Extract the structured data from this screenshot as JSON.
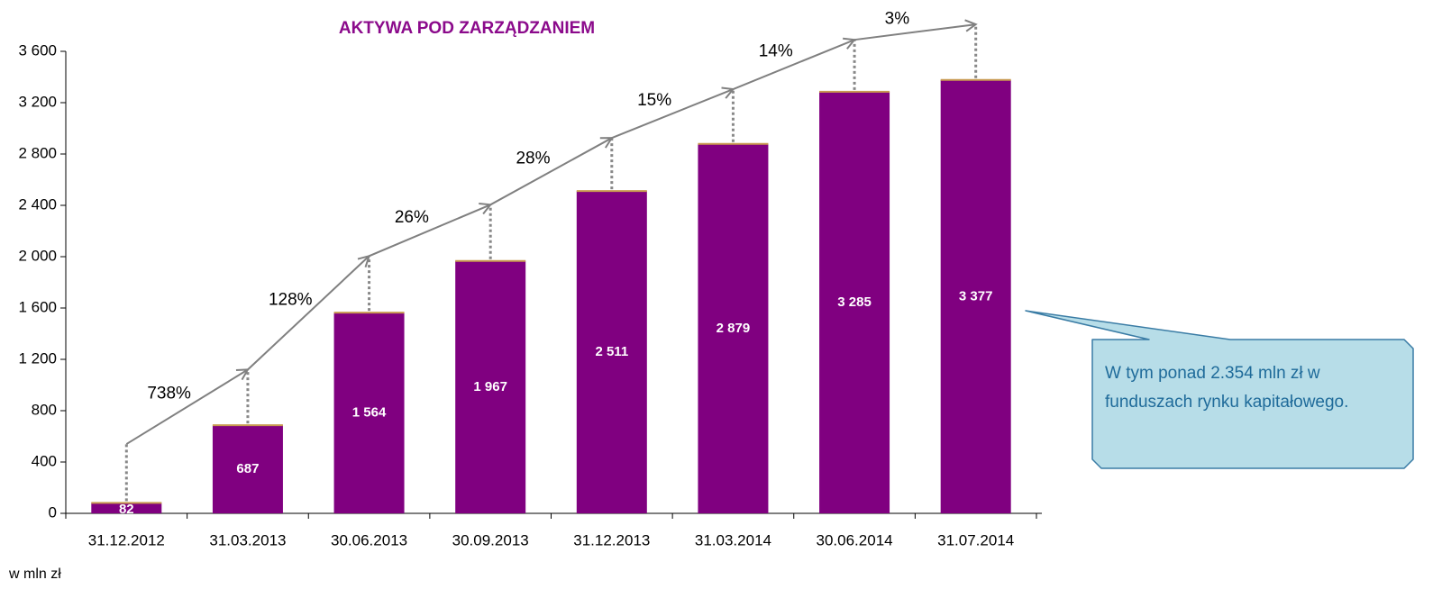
{
  "chart_data": {
    "type": "bar",
    "title": "AKTYWA POD ZARZĄDZANIEM",
    "unit_label": "w mln zł",
    "categories": [
      "31.12.2012",
      "31.03.2013",
      "30.06.2013",
      "30.09.2013",
      "31.12.2013",
      "31.03.2014",
      "30.06.2014",
      "31.07.2014"
    ],
    "values": [
      82,
      687,
      1564,
      1967,
      2511,
      2879,
      3285,
      3377
    ],
    "value_labels": [
      "82",
      "687",
      "1 564",
      "1 967",
      "2 511",
      "2 879",
      "3 285",
      "3 377"
    ],
    "color": "#800080",
    "trend": [
      540,
      1120,
      2005,
      2405,
      2925,
      3305,
      3690,
      3810
    ],
    "trend_color": "#808080",
    "growth_labels": [
      "738%",
      "128%",
      "26%",
      "28%",
      "15%",
      "14%",
      "3%"
    ],
    "ylim": [
      0,
      3600
    ],
    "yticks": [
      0,
      400,
      800,
      {
        "value": 1200,
        "label": "1 200"
      },
      {
        "value": 1600,
        "label": "1 600"
      },
      {
        "value": 2000,
        "label": "2 000"
      },
      {
        "value": 2400,
        "label": "2 400"
      },
      {
        "value": 2800,
        "label": "2 800"
      },
      {
        "value": 3200,
        "label": "3 200"
      },
      {
        "value": 3600,
        "label": "3 600"
      }
    ],
    "callout": "W tym ponad 2.354 mln zł w funduszach rynku kapitałowego."
  }
}
